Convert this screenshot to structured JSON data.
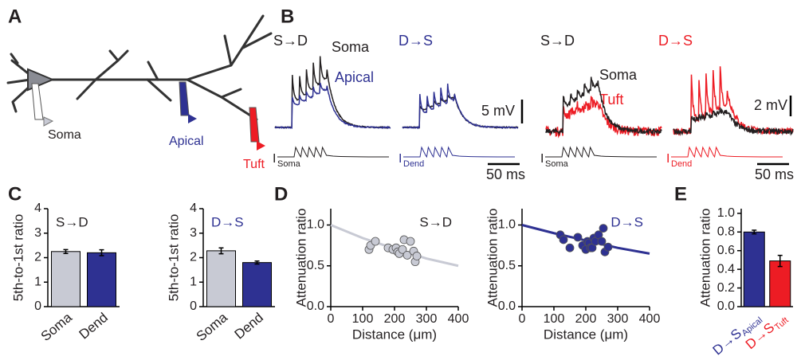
{
  "panel_labels": [
    "A",
    "B",
    "C",
    "D",
    "E"
  ],
  "panel_a": {
    "labels": [
      "Soma",
      "Apical",
      "Tuft"
    ]
  },
  "panel_b": {
    "groups": [
      {
        "title": "S→D",
        "labels": [
          "Soma",
          "Apical"
        ],
        "stim": "I",
        "stim_sub": "Soma"
      },
      {
        "title": "D→S",
        "stim": "I",
        "stim_sub": "Dend"
      },
      {
        "title": "S→D",
        "labels": [
          "Soma",
          "Tuft"
        ],
        "stim": "I",
        "stim_sub": "Soma"
      },
      {
        "title": "D→S",
        "stim": "I",
        "stim_sub": "Dend"
      }
    ],
    "scales": [
      "5 mV",
      "50 ms",
      "2 mV",
      "50 ms"
    ]
  },
  "chart_data": [
    {
      "type": "bar",
      "title": "S→D",
      "title_color": "#231f20",
      "ylabel": "5th-to-1st ratio",
      "categories": [
        "Soma",
        "Dend"
      ],
      "values": [
        2.25,
        2.2
      ],
      "errors": [
        0.08,
        0.12
      ],
      "colors": [
        "#c8cad4",
        "#2e3192"
      ],
      "ylim": [
        0,
        4
      ],
      "yticks": [
        0,
        1,
        2,
        3,
        4
      ]
    },
    {
      "type": "bar",
      "title": "D→S",
      "title_color": "#2e3192",
      "ylabel": "5th-to-1st ratio",
      "categories": [
        "Soma",
        "Dend"
      ],
      "values": [
        2.28,
        1.8
      ],
      "errors": [
        0.12,
        0.06
      ],
      "colors": [
        "#c8cad4",
        "#2e3192"
      ],
      "ylim": [
        0,
        4
      ],
      "yticks": [
        0,
        1,
        2,
        3,
        4
      ]
    },
    {
      "type": "scatter",
      "title": "S→D",
      "title_color": "#231f20",
      "ylabel": "Attenuation ratio",
      "xlabel": "Distance (μm)",
      "x": [
        120,
        125,
        140,
        180,
        195,
        205,
        210,
        215,
        225,
        230,
        240,
        250,
        260,
        265,
        270
      ],
      "values": [
        0.7,
        0.75,
        0.8,
        0.72,
        0.7,
        0.72,
        0.67,
        0.65,
        0.7,
        0.82,
        0.63,
        0.8,
        0.68,
        0.55,
        0.62
      ],
      "color": "#c8cad4",
      "fit_x": [
        0,
        100,
        200,
        300,
        400
      ],
      "fit_values": [
        1.0,
        0.84,
        0.71,
        0.59,
        0.5
      ],
      "fit_color": "#c8cad4",
      "xlim": [
        0,
        400
      ],
      "xticks": [
        0,
        100,
        200,
        300,
        400
      ],
      "ylim": [
        0,
        1.2
      ],
      "yticks": [
        {
          "value": 0,
          "label": "0.0"
        },
        {
          "value": 0.5,
          "label": "0.5"
        },
        {
          "value": 1,
          "label": "1.0"
        }
      ]
    },
    {
      "type": "scatter",
      "title": "D→S",
      "title_color": "#2e3192",
      "ylabel": "Attenuation ratio",
      "xlabel": "Distance (μm)",
      "x": [
        120,
        130,
        150,
        175,
        190,
        200,
        205,
        210,
        215,
        220,
        225,
        230,
        240,
        250,
        255,
        260,
        270
      ],
      "values": [
        0.88,
        0.82,
        0.72,
        0.85,
        0.75,
        0.7,
        0.8,
        0.78,
        0.72,
        0.72,
        0.84,
        0.8,
        0.88,
        0.8,
        0.96,
        0.67,
        0.73
      ],
      "color": "#2e3192",
      "fit_x": [
        0,
        100,
        200,
        300,
        400
      ],
      "fit_values": [
        1.0,
        0.9,
        0.81,
        0.72,
        0.65
      ],
      "fit_color": "#2e3192",
      "xlim": [
        0,
        400
      ],
      "xticks": [
        0,
        100,
        200,
        300,
        400
      ],
      "ylim": [
        0,
        1.2
      ],
      "yticks": [
        {
          "value": 0,
          "label": "0.0"
        },
        {
          "value": 0.5,
          "label": "0.5"
        },
        {
          "value": 1,
          "label": "1.0"
        }
      ]
    },
    {
      "type": "bar",
      "ylabel": "Attenuation ratio",
      "categories": [
        "D→S",
        "D→S"
      ],
      "category_subscripts": [
        "Apical",
        "Tuft"
      ],
      "values": [
        0.8,
        0.49
      ],
      "errors": [
        0.02,
        0.06
      ],
      "colors": [
        "#2e3192",
        "#ed1c24"
      ],
      "ylim": [
        0,
        1.05
      ],
      "yticks": [
        {
          "value": 0,
          "label": "0.0"
        },
        {
          "value": 0.2,
          "label": "0.2"
        },
        {
          "value": 0.4,
          "label": "0.4"
        },
        {
          "value": 0.6,
          "label": "0.6"
        },
        {
          "value": 0.8,
          "label": "0.8"
        },
        {
          "value": 1,
          "label": "1.0"
        }
      ]
    }
  ]
}
